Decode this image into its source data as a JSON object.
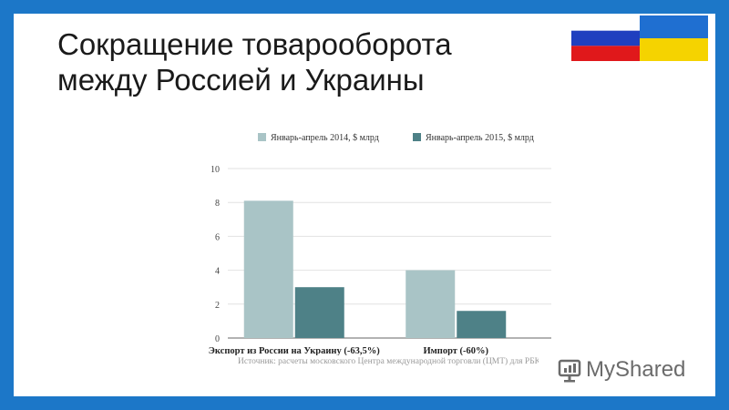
{
  "slide": {
    "title_line1": "Сокращение товарооборота",
    "title_line2": "между Россией и Украины",
    "source": "Источник: расчеты московского Центра международной торговли (ЦМТ) для РБК",
    "watermark": "MyShared"
  },
  "flags": {
    "russia": [
      "#ffffff",
      "#1f3fbf",
      "#e0181b"
    ],
    "ukraine": [
      "#1f6fd1",
      "#f5d300"
    ]
  },
  "chart_data": {
    "type": "bar",
    "categories": [
      "Экспорт из России на Украину (-63,5%)",
      "Импорт (-60%)"
    ],
    "series": [
      {
        "name": "Январь-апрель 2014, $ млрд",
        "values": [
          8.1,
          4.0
        ],
        "color": "#a9c4c6"
      },
      {
        "name": "Январь-апрель 2015, $ млрд",
        "values": [
          3.0,
          1.6
        ],
        "color": "#4e8187"
      }
    ],
    "ylim": [
      0,
      10
    ],
    "yticks": [
      "0",
      "2",
      "4",
      "6",
      "8",
      "10"
    ],
    "grid": true,
    "legend": "top"
  }
}
